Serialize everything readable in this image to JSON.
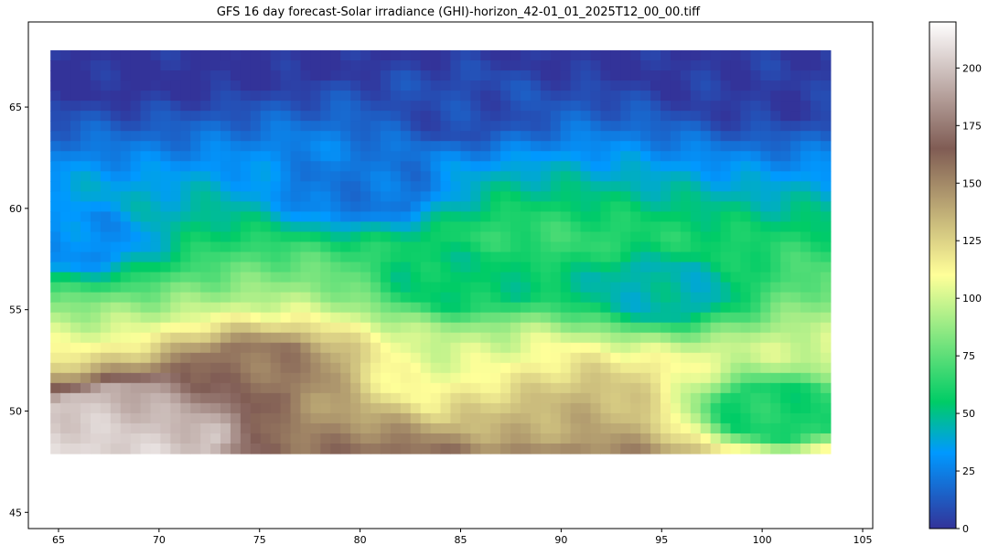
{
  "chart_data": {
    "type": "heatmap",
    "title": "GFS 16 day forecast-Solar irradiance (GHI)-horizon_42-01_01_2025T12_00_00.tiff",
    "xlabel": "",
    "ylabel": "",
    "xlim": [
      63.5,
      105.5
    ],
    "ylim": [
      44.2,
      69.2
    ],
    "xticks": [
      65,
      70,
      75,
      80,
      85,
      90,
      95,
      100,
      105
    ],
    "yticks": [
      45,
      50,
      55,
      60,
      65
    ],
    "extent": {
      "x": [
        64.6,
        103.4
      ],
      "y": [
        47.9,
        67.8
      ]
    },
    "colormap": "terrain",
    "colorbar": {
      "range": [
        0,
        220
      ],
      "ticks": [
        0,
        25,
        50,
        75,
        100,
        125,
        150,
        175,
        200
      ]
    },
    "grid": false,
    "values_description": "approximate GHI field digitized from the image",
    "key_values": [
      {
        "lon": 67.5,
        "lat": 48.5,
        "value": 215
      },
      {
        "lon": 69.0,
        "lat": 49.5,
        "value": 190
      },
      {
        "lon": 75.0,
        "lat": 52.0,
        "value": 155
      },
      {
        "lon": 88.5,
        "lat": 50.0,
        "value": 140
      },
      {
        "lon": 85.0,
        "lat": 52.0,
        "value": 100
      },
      {
        "lon": 85.0,
        "lat": 56.5,
        "value": 55
      },
      {
        "lon": 95.0,
        "lat": 56.0,
        "value": 45
      },
      {
        "lon": 101.0,
        "lat": 50.0,
        "value": 60
      },
      {
        "lon": 65.5,
        "lat": 58.5,
        "value": 30
      },
      {
        "lon": 80.0,
        "lat": 61.0,
        "value": 22
      },
      {
        "lon": 85.0,
        "lat": 65.0,
        "value": 8
      },
      {
        "lon": 100.0,
        "lat": 66.0,
        "value": 3
      }
    ]
  }
}
